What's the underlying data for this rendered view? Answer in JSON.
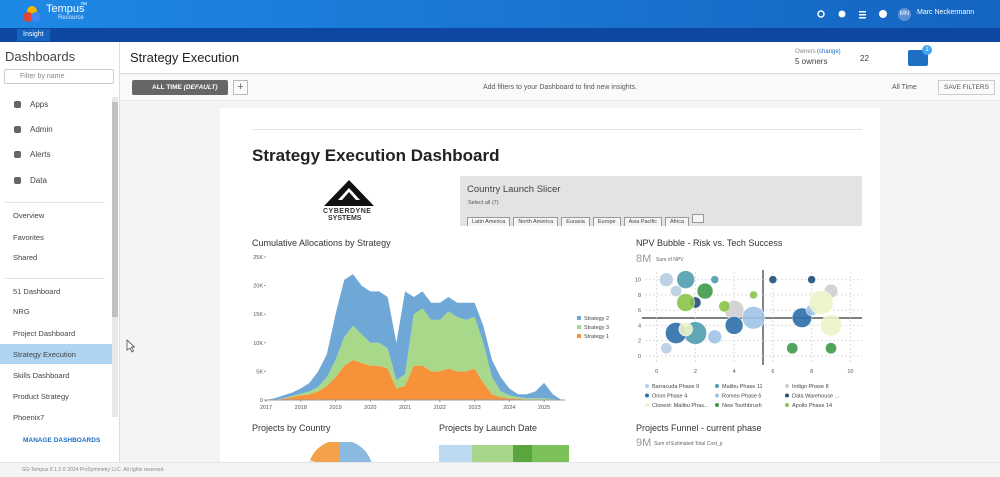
{
  "app": {
    "name": "Tempus",
    "trademark": "™",
    "subtitle": "Resource",
    "menu": "Insight",
    "user_initials": "MN",
    "user_name": "Marc Neckermann"
  },
  "sidebar": {
    "title": "Dashboards",
    "search_placeholder": "Filter by name",
    "nav": [
      "Apps",
      "Admin",
      "Alerts",
      "Data"
    ],
    "links": [
      "Overview",
      "Favorites",
      "Shared"
    ],
    "dashboards": [
      "51 Dashboard",
      "NRG",
      "Project Dashboard",
      "Strategy Execution",
      "Skills Dashboard",
      "Product Strategy",
      "Phoenix7"
    ],
    "manage": "MANAGE DASHBOARDS"
  },
  "page": {
    "title": "Strategy Execution",
    "owners_label": "Owners",
    "owners_change": "(change)",
    "owners_count": "5 owners",
    "followers": 22,
    "filter_badge": 1
  },
  "filter_bar": {
    "time_chip": "ALL TIME",
    "time_chip_default": "(DEFAULT)",
    "hint": "Add filters to your Dashboard to find new insights.",
    "time_select": "All Time",
    "save": "SAVE FILTERS"
  },
  "dashboard": {
    "title": "Strategy Execution Dashboard",
    "logo_text": [
      "CYBERDYNE",
      "SYSTEMS"
    ],
    "slicer": {
      "title": "Country Launch Slicer",
      "select_all": "Select all (7)",
      "chips": [
        "Latin America",
        "North America",
        "Eurasia",
        "Europe",
        "Asia Pacific",
        "Africa"
      ]
    },
    "widgets": [
      "Projects by Country",
      "Projects by Launch Date",
      "Projects Funnel - current phase"
    ],
    "funnel_total": "9M",
    "funnel_total_label": "Sum of Estimated Total Cost_p"
  },
  "chart_data": [
    {
      "type": "area",
      "title": "Cumulative Allocations by Strategy",
      "x": [
        2017,
        2017.25,
        2017.5,
        2017.75,
        2018,
        2018.25,
        2018.5,
        2018.75,
        2019,
        2019.25,
        2019.5,
        2019.75,
        2020,
        2020.25,
        2020.5,
        2020.75,
        2021,
        2021.25,
        2021.5,
        2021.75,
        2022,
        2022.25,
        2022.5,
        2022.75,
        2023,
        2023.25,
        2023.5,
        2023.75,
        2024,
        2024.25,
        2024.5,
        2024.75,
        2025,
        2025.25,
        2025.5
      ],
      "series": [
        {
          "name": "Strategy 2",
          "color": "#6fa8d6",
          "values": [
            0,
            300,
            500,
            600,
            900,
            1500,
            2700,
            4000,
            8000,
            10000,
            9000,
            8500,
            9000,
            9000,
            9000,
            6500,
            14500,
            3000,
            3000,
            3000,
            3000,
            2500,
            2500,
            3000,
            2500,
            3000,
            3000,
            2500,
            1200,
            500,
            700,
            1200,
            2700,
            850,
            0
          ]
        },
        {
          "name": "Strategy 3",
          "color": "#a8d98a",
          "values": [
            0,
            0,
            100,
            200,
            300,
            500,
            800,
            1500,
            3000,
            5000,
            6000,
            5000,
            4000,
            4000,
            3500,
            1500,
            2000,
            9000,
            10000,
            9000,
            9000,
            10000,
            9500,
            9000,
            9000,
            7000,
            3000,
            1000,
            500,
            300,
            200,
            200,
            200,
            100,
            0
          ]
        },
        {
          "name": "Strategy 1",
          "color": "#f7923a",
          "values": [
            0,
            0,
            200,
            500,
            800,
            1000,
            1500,
            2500,
            4000,
            6000,
            7000,
            6500,
            6000,
            6000,
            5500,
            2000,
            2500,
            6000,
            6000,
            5000,
            5000,
            5500,
            5000,
            5000,
            5500,
            3000,
            1000,
            500,
            300,
            200,
            100,
            100,
            100,
            50,
            0
          ]
        }
      ],
      "xlim": [
        2017,
        2025.6
      ],
      "xticks": [
        2017,
        2018,
        2019,
        2020,
        2021,
        2022,
        2023,
        2024,
        2025
      ],
      "ylim": [
        0,
        25000
      ],
      "yticks": [
        0,
        {
          "value": 5000,
          "label": "5K"
        },
        {
          "value": 10000,
          "label": "10K"
        },
        {
          "value": 15000,
          "label": "15K"
        },
        {
          "value": 20000,
          "label": "20K"
        },
        {
          "value": 25000,
          "label": "25K"
        }
      ]
    },
    {
      "type": "scatter",
      "title": "NPV Bubble - Risk vs. Tech Success",
      "total": "8M",
      "total_label": "Sum of NPV",
      "series": [
        {
          "name": "Barracuda Phase 9",
          "color": "#b7cde3",
          "x": [
            0.5,
            1,
            0.5
          ],
          "y": [
            10,
            8.5,
            1
          ],
          "size": [
            3,
            2,
            2
          ]
        },
        {
          "name": "Malibu Phase 11",
          "color": "#4f9fb0",
          "x": [
            2,
            1.5,
            3
          ],
          "y": [
            3,
            10,
            10
          ],
          "size": [
            8,
            5,
            1
          ]
        },
        {
          "name": "Indigo Phase 8",
          "color": "#cfcfcf",
          "x": [
            9,
            4
          ],
          "y": [
            8.5,
            6
          ],
          "size": [
            3,
            6
          ]
        },
        {
          "name": "Orion Phase 4",
          "color": "#2e6fa8",
          "x": [
            1,
            7.5,
            4
          ],
          "y": [
            3,
            5,
            4
          ],
          "size": [
            7,
            6,
            5
          ]
        },
        {
          "name": "Romeo Phase 5",
          "color": "#9fc3e6",
          "x": [
            3,
            5,
            8
          ],
          "y": [
            2.5,
            5,
            6
          ],
          "size": [
            3,
            8,
            2
          ]
        },
        {
          "name": "Data Warehouse ...",
          "color": "#1f4e79",
          "x": [
            8,
            6,
            2
          ],
          "y": [
            10,
            10,
            7
          ],
          "size": [
            1,
            1,
            2
          ]
        },
        {
          "name": "Clonest: Malibu Phas...",
          "color": "#eef3c8",
          "x": [
            8.5,
            9,
            1.5
          ],
          "y": [
            7,
            4,
            3.5
          ],
          "size": [
            9,
            7,
            3
          ]
        },
        {
          "name": "New Toothbrush",
          "color": "#3f9a4a",
          "x": [
            2.5,
            7,
            9
          ],
          "y": [
            8.5,
            1,
            1
          ],
          "size": [
            4,
            2,
            2
          ]
        },
        {
          "name": "Apollo Phase 14",
          "color": "#8bc34a",
          "x": [
            1.5,
            3.5,
            5
          ],
          "y": [
            7,
            6.5,
            8
          ],
          "size": [
            5,
            2,
            1
          ]
        }
      ],
      "xlim": [
        -0.6,
        10.6
      ],
      "xticks": [
        0,
        2,
        4,
        6,
        8,
        10
      ],
      "ylim": [
        -0.8,
        11
      ],
      "yticks": [
        0,
        2,
        4,
        6,
        8,
        10
      ],
      "grid": true
    }
  ],
  "footer": "SG-Tempus 9.1.3 © 2024 ProSymmetry LLC. All rights reserved."
}
